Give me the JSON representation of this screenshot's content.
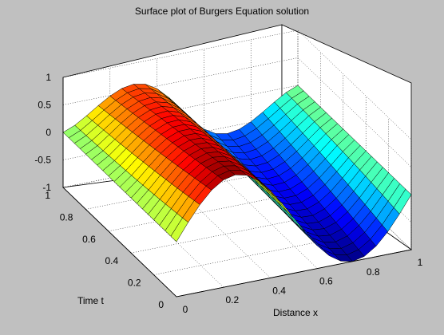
{
  "chart_data": {
    "type": "surface",
    "title": "Surface plot of Burgers Equation solution",
    "xlabel": "Distance x",
    "ylabel": "Time t",
    "zlabel": "",
    "xlim": [
      0,
      1
    ],
    "ylim": [
      0,
      1
    ],
    "zlim": [
      -1,
      1
    ],
    "xticks": [
      "0",
      "0.2",
      "0.4",
      "0.6",
      "0.8",
      "1"
    ],
    "yticks": [
      "0",
      "0.2",
      "0.4",
      "0.6",
      "0.8",
      "1"
    ],
    "zticks": [
      "-1",
      "-0.5",
      "0",
      "0.5",
      "1"
    ],
    "grid": true,
    "colormap": "jet",
    "x": [
      0,
      0.05,
      0.1,
      0.15,
      0.2,
      0.25,
      0.3,
      0.35,
      0.4,
      0.45,
      0.5,
      0.55,
      0.6,
      0.65,
      0.7,
      0.75,
      0.8,
      0.85,
      0.9,
      0.95,
      1.0
    ],
    "t": [
      0,
      0.1,
      0.2,
      0.3,
      0.4,
      0.5,
      0.6,
      0.7,
      0.8,
      0.9,
      1.0
    ],
    "z_at_t0": [
      0,
      0.31,
      0.59,
      0.81,
      0.95,
      1.0,
      0.95,
      0.81,
      0.59,
      0.31,
      0,
      -0.31,
      -0.59,
      -0.81,
      -0.95,
      -1.0,
      -0.95,
      -0.81,
      -0.59,
      -0.31,
      0
    ],
    "z_at_t1": [
      0,
      0.07,
      0.14,
      0.21,
      0.28,
      0.35,
      0.42,
      0.49,
      0.56,
      0.62,
      0,
      -0.62,
      -0.56,
      -0.49,
      -0.42,
      -0.35,
      -0.28,
      -0.21,
      -0.14,
      -0.07,
      0
    ]
  },
  "colors": {
    "background": "#c0c0c0",
    "axes": "#ffffff",
    "grid": "#000000",
    "mesh": "#000000"
  }
}
